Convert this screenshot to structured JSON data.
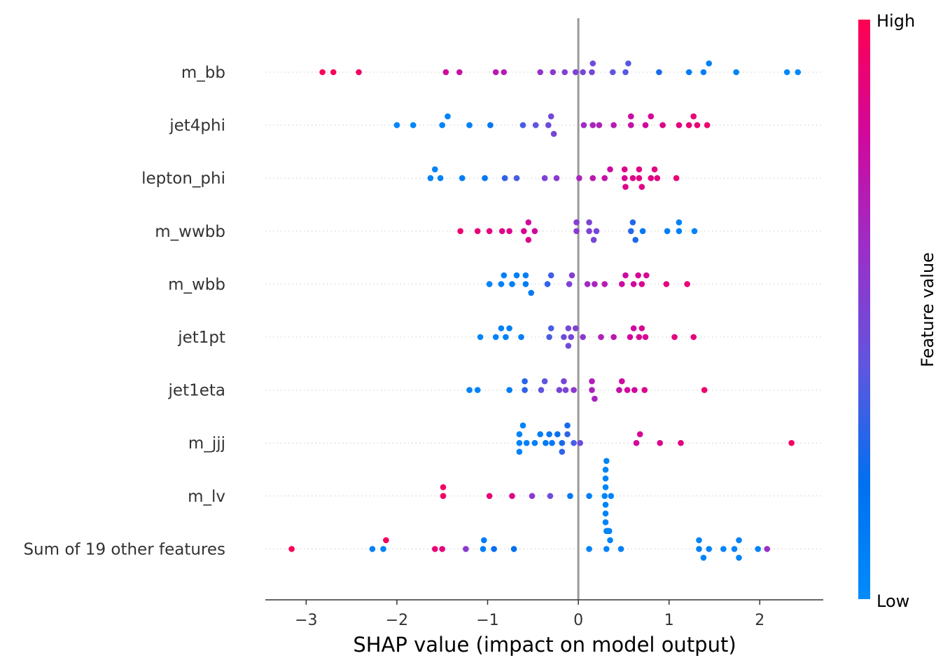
{
  "chart_data": {
    "type": "scatter",
    "subtype": "shap-beeswarm",
    "xlabel": "SHAP value (impact on model output)",
    "xlim": [
      -3.45,
      2.7
    ],
    "xticks": [
      {
        "value": -3,
        "label": "−3"
      },
      {
        "value": -2,
        "label": "−2"
      },
      {
        "value": -1,
        "label": "−1"
      },
      {
        "value": 0,
        "label": "0"
      },
      {
        "value": 1,
        "label": "1"
      },
      {
        "value": 2,
        "label": "2"
      }
    ],
    "colorbar": {
      "label": "Feature value",
      "high_label": "High",
      "low_label": "Low",
      "low_color": "#008bfb",
      "high_color": "#ff0051"
    },
    "zero_line_color": "#999999",
    "grid_row_lines": "dotted",
    "features": [
      {
        "name": "m_bb",
        "points": [
          [
            -2.82,
            0.98
          ],
          [
            -2.7,
            0.97
          ],
          [
            -2.42,
            0.95
          ],
          [
            -1.46,
            0.8
          ],
          [
            -1.31,
            0.75
          ],
          [
            -0.91,
            0.72
          ],
          [
            -0.82,
            0.7
          ],
          [
            -0.42,
            0.58
          ],
          [
            -0.28,
            0.55
          ],
          [
            -0.15,
            0.52
          ],
          [
            0.05,
            0.48
          ],
          [
            0.15,
            0.48
          ],
          [
            -0.03,
            0.5
          ],
          [
            0.16,
            0.45
          ],
          [
            0.38,
            0.4
          ],
          [
            0.55,
            0.38
          ],
          [
            0.52,
            0.38
          ],
          [
            0.89,
            0.25
          ],
          [
            1.22,
            0.12
          ],
          [
            1.38,
            0.08
          ],
          [
            1.44,
            0.08
          ],
          [
            1.74,
            0.05
          ],
          [
            2.3,
            0.02
          ],
          [
            2.42,
            0.02
          ]
        ]
      },
      {
        "name": "jet4phi",
        "points": [
          [
            -2.0,
            0.02
          ],
          [
            -1.82,
            0.03
          ],
          [
            -1.5,
            0.05
          ],
          [
            -1.44,
            0.06
          ],
          [
            -1.2,
            0.08
          ],
          [
            -0.97,
            0.15
          ],
          [
            -0.61,
            0.35
          ],
          [
            -0.47,
            0.4
          ],
          [
            -0.33,
            0.45
          ],
          [
            -0.3,
            0.47
          ],
          [
            -0.27,
            0.48
          ],
          [
            0.06,
            0.62
          ],
          [
            0.16,
            0.65
          ],
          [
            0.23,
            0.67
          ],
          [
            0.39,
            0.7
          ],
          [
            0.58,
            0.75
          ],
          [
            0.58,
            0.78
          ],
          [
            0.74,
            0.8
          ],
          [
            0.8,
            0.82
          ],
          [
            0.93,
            0.85
          ],
          [
            1.11,
            0.88
          ],
          [
            1.22,
            0.9
          ],
          [
            1.27,
            0.9
          ],
          [
            1.31,
            0.9
          ],
          [
            1.42,
            0.92
          ]
        ]
      },
      {
        "name": "lepton_phi",
        "points": [
          [
            -1.63,
            0.05
          ],
          [
            -1.58,
            0.06
          ],
          [
            -1.52,
            0.07
          ],
          [
            -1.28,
            0.1
          ],
          [
            -1.03,
            0.15
          ],
          [
            -0.81,
            0.3
          ],
          [
            -0.68,
            0.35
          ],
          [
            -0.37,
            0.5
          ],
          [
            -0.24,
            0.55
          ],
          [
            0.01,
            0.65
          ],
          [
            0.16,
            0.72
          ],
          [
            0.29,
            0.75
          ],
          [
            0.35,
            0.78
          ],
          [
            0.51,
            0.82
          ],
          [
            0.51,
            0.85
          ],
          [
            0.52,
            0.85
          ],
          [
            0.6,
            0.86
          ],
          [
            0.67,
            0.87
          ],
          [
            0.67,
            0.86
          ],
          [
            0.7,
            0.86
          ],
          [
            0.8,
            0.87
          ],
          [
            0.84,
            0.87
          ],
          [
            0.87,
            0.87
          ],
          [
            1.08,
            0.9
          ]
        ]
      },
      {
        "name": "m_wwbb",
        "points": [
          [
            -1.3,
            0.92
          ],
          [
            -1.11,
            0.9
          ],
          [
            -0.98,
            0.88
          ],
          [
            -0.84,
            0.86
          ],
          [
            -0.76,
            0.85
          ],
          [
            -0.6,
            0.82
          ],
          [
            -0.55,
            0.8
          ],
          [
            -0.55,
            0.85
          ],
          [
            -0.48,
            0.8
          ],
          [
            -0.02,
            0.55
          ],
          [
            -0.02,
            0.52
          ],
          [
            0.12,
            0.5
          ],
          [
            0.12,
            0.5
          ],
          [
            0.17,
            0.48
          ],
          [
            0.2,
            0.48
          ],
          [
            0.58,
            0.28
          ],
          [
            0.6,
            0.28
          ],
          [
            0.63,
            0.25
          ],
          [
            0.71,
            0.15
          ],
          [
            0.98,
            0.1
          ],
          [
            1.11,
            0.08
          ],
          [
            1.11,
            0.07
          ],
          [
            1.28,
            0.05
          ]
        ]
      },
      {
        "name": "m_wbb",
        "points": [
          [
            -0.98,
            0.05
          ],
          [
            -0.85,
            0.08
          ],
          [
            -0.82,
            0.08
          ],
          [
            -0.73,
            0.1
          ],
          [
            -0.68,
            0.1
          ],
          [
            -0.58,
            0.1
          ],
          [
            -0.58,
            0.09
          ],
          [
            -0.52,
            0.12
          ],
          [
            -0.34,
            0.3
          ],
          [
            -0.3,
            0.33
          ],
          [
            -0.1,
            0.5
          ],
          [
            -0.07,
            0.53
          ],
          [
            0.1,
            0.62
          ],
          [
            0.18,
            0.65
          ],
          [
            0.29,
            0.7
          ],
          [
            0.48,
            0.78
          ],
          [
            0.52,
            0.78
          ],
          [
            0.61,
            0.8
          ],
          [
            0.66,
            0.82
          ],
          [
            0.7,
            0.83
          ],
          [
            0.75,
            0.83
          ],
          [
            0.97,
            0.88
          ],
          [
            1.2,
            0.9
          ]
        ]
      },
      {
        "name": "jet1pt",
        "points": [
          [
            -1.08,
            0.05
          ],
          [
            -0.91,
            0.07
          ],
          [
            -0.85,
            0.08
          ],
          [
            -0.8,
            0.08
          ],
          [
            -0.76,
            0.08
          ],
          [
            -0.63,
            0.1
          ],
          [
            -0.32,
            0.35
          ],
          [
            -0.3,
            0.35
          ],
          [
            -0.16,
            0.45
          ],
          [
            -0.11,
            0.47
          ],
          [
            -0.11,
            0.45
          ],
          [
            -0.08,
            0.48
          ],
          [
            -0.03,
            0.5
          ],
          [
            0.05,
            0.55
          ],
          [
            0.25,
            0.68
          ],
          [
            0.39,
            0.72
          ],
          [
            0.57,
            0.8
          ],
          [
            0.61,
            0.8
          ],
          [
            0.67,
            0.82
          ],
          [
            0.7,
            0.83
          ],
          [
            0.74,
            0.83
          ],
          [
            1.06,
            0.88
          ],
          [
            1.27,
            0.9
          ]
        ]
      },
      {
        "name": "jet1eta",
        "points": [
          [
            -1.2,
            0.05
          ],
          [
            -1.11,
            0.06
          ],
          [
            -0.76,
            0.1
          ],
          [
            -0.59,
            0.3
          ],
          [
            -0.59,
            0.28
          ],
          [
            -0.41,
            0.4
          ],
          [
            -0.37,
            0.4
          ],
          [
            -0.21,
            0.48
          ],
          [
            -0.16,
            0.48
          ],
          [
            -0.14,
            0.5
          ],
          [
            -0.05,
            0.55
          ],
          [
            0.15,
            0.65
          ],
          [
            0.18,
            0.65
          ],
          [
            0.15,
            0.68
          ],
          [
            0.45,
            0.75
          ],
          [
            0.48,
            0.78
          ],
          [
            0.54,
            0.8
          ],
          [
            0.62,
            0.8
          ],
          [
            0.73,
            0.85
          ],
          [
            1.39,
            0.92
          ]
        ]
      },
      {
        "name": "m_jjj",
        "points": [
          [
            -0.65,
            0.05
          ],
          [
            -0.65,
            0.06
          ],
          [
            -0.65,
            0.05
          ],
          [
            -0.61,
            0.06
          ],
          [
            -0.57,
            0.07
          ],
          [
            -0.48,
            0.1
          ],
          [
            -0.42,
            0.1
          ],
          [
            -0.36,
            0.12
          ],
          [
            -0.32,
            0.13
          ],
          [
            -0.29,
            0.13
          ],
          [
            -0.23,
            0.2
          ],
          [
            -0.18,
            0.25
          ],
          [
            -0.18,
            0.3
          ],
          [
            -0.12,
            0.3
          ],
          [
            -0.12,
            0.25
          ],
          [
            -0.05,
            0.35
          ],
          [
            0.02,
            0.45
          ],
          [
            0.64,
            0.8
          ],
          [
            0.68,
            0.82
          ],
          [
            0.9,
            0.85
          ],
          [
            1.13,
            0.88
          ],
          [
            2.35,
            0.95
          ]
        ]
      },
      {
        "name": "m_lv",
        "points": [
          [
            -1.49,
            0.95
          ],
          [
            -1.49,
            0.95
          ],
          [
            -0.98,
            0.9
          ],
          [
            -0.73,
            0.85
          ],
          [
            -0.51,
            0.55
          ],
          [
            -0.31,
            0.45
          ],
          [
            -0.09,
            0.15
          ],
          [
            0.12,
            0.1
          ],
          [
            0.3,
            0.05
          ],
          [
            0.3,
            0.05
          ],
          [
            0.3,
            0.05
          ],
          [
            0.32,
            0.05
          ],
          [
            0.33,
            0.05
          ],
          [
            0.34,
            0.05
          ],
          [
            0.36,
            0.05
          ],
          [
            0.3,
            0.05
          ],
          [
            0.3,
            0.05
          ],
          [
            0.3,
            0.05
          ],
          [
            0.32,
            0.05
          ],
          [
            0.33,
            0.05
          ],
          [
            0.31,
            0.05
          ],
          [
            0.29,
            0.05
          ],
          [
            0.34,
            0.05
          ],
          [
            0.31,
            0.05
          ]
        ]
      },
      {
        "name": "Sum of 19 other features",
        "points": [
          [
            -3.16,
            0.98
          ],
          [
            -2.27,
            0.08
          ],
          [
            -2.15,
            0.05
          ],
          [
            -2.12,
            0.96
          ],
          [
            -1.58,
            0.9
          ],
          [
            -1.5,
            0.88
          ],
          [
            -1.24,
            0.55
          ],
          [
            -1.05,
            0.1
          ],
          [
            -1.04,
            0.1
          ],
          [
            -0.93,
            0.22
          ],
          [
            -0.71,
            0.2
          ],
          [
            0.12,
            0.05
          ],
          [
            0.31,
            0.05
          ],
          [
            0.35,
            0.05
          ],
          [
            0.47,
            0.08
          ],
          [
            1.33,
            0.08
          ],
          [
            1.33,
            0.05
          ],
          [
            1.38,
            0.05
          ],
          [
            1.44,
            0.06
          ],
          [
            1.6,
            0.05
          ],
          [
            1.72,
            0.05
          ],
          [
            1.77,
            0.05
          ],
          [
            1.77,
            0.05
          ],
          [
            1.98,
            0.05
          ],
          [
            2.08,
            0.6
          ]
        ]
      }
    ]
  }
}
